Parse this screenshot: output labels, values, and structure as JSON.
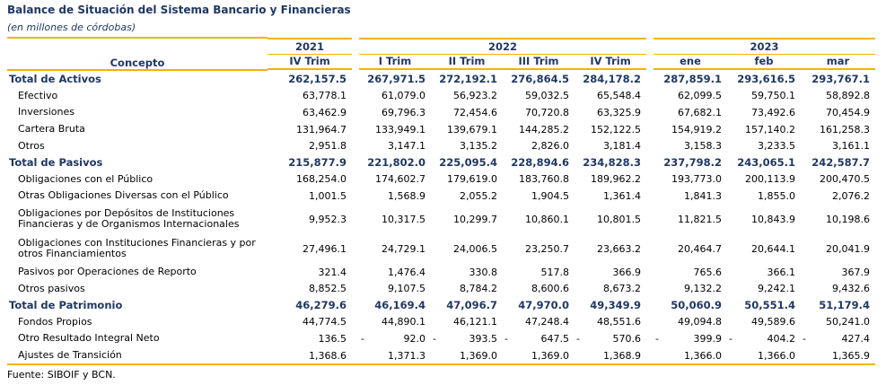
{
  "title": "Balance de Situación del Sistema Bancario y Financieras",
  "subtitle": "(en millones de córdobas)",
  "header": {
    "concept": "Concepto",
    "years": [
      "2021",
      "2022",
      "2023"
    ],
    "periods": [
      "IV Trim",
      "I Trim",
      "II Trim",
      "III Trim",
      "IV Trim",
      "ene",
      "feb",
      "mar"
    ]
  },
  "rows": [
    {
      "label": "Total de Activos",
      "total": true,
      "values": [
        "262,157.5",
        "267,971.5",
        "272,192.1",
        "276,864.5",
        "284,178.2",
        "287,859.1",
        "293,616.5",
        "293,767.1"
      ]
    },
    {
      "label": "Efectivo",
      "values": [
        "63,778.1",
        "61,079.0",
        "56,923.2",
        "59,032.5",
        "65,548.4",
        "62,099.5",
        "59,750.1",
        "58,892.8"
      ]
    },
    {
      "label": "Inversiones",
      "values": [
        "63,462.9",
        "69,796.3",
        "72,454.6",
        "70,720.8",
        "63,325.9",
        "67,682.1",
        "73,492.6",
        "70,454.9"
      ]
    },
    {
      "label": "Cartera Bruta",
      "values": [
        "131,964.7",
        "133,949.1",
        "139,679.1",
        "144,285.2",
        "152,122.5",
        "154,919.2",
        "157,140.2",
        "161,258.3"
      ]
    },
    {
      "label": "Otros",
      "values": [
        "2,951.8",
        "3,147.1",
        "3,135.2",
        "2,826.0",
        "3,181.4",
        "3,158.3",
        "3,233.5",
        "3,161.1"
      ]
    },
    {
      "label": "Total de Pasivos",
      "total": true,
      "values": [
        "215,877.9",
        "221,802.0",
        "225,095.4",
        "228,894.6",
        "234,828.3",
        "237,798.2",
        "243,065.1",
        "242,587.7"
      ]
    },
    {
      "label": "Obligaciones con el Público",
      "values": [
        "168,254.0",
        "174,602.7",
        "179,619.0",
        "183,760.8",
        "189,962.2",
        "193,773.0",
        "200,113.9",
        "200,470.5"
      ]
    },
    {
      "label": "Otras Obligaciones Diversas con el Público",
      "values": [
        "1,001.5",
        "1,568.9",
        "2,055.2",
        "1,904.5",
        "1,361.4",
        "1,841.3",
        "1,855.0",
        "2,076.2"
      ]
    },
    {
      "label": "Obligaciones por Depósitos de Instituciones Financieras y de Organismos Internacionales",
      "tall": true,
      "values": [
        "9,952.3",
        "10,317.5",
        "10,299.7",
        "10,860.1",
        "10,801.5",
        "11,821.5",
        "10,843.9",
        "10,198.6"
      ]
    },
    {
      "label": "Obligaciones con Instituciones Financieras y por otros Financiamientos",
      "tall": true,
      "values": [
        "27,496.1",
        "24,729.1",
        "24,006.5",
        "23,250.7",
        "23,663.2",
        "20,464.7",
        "20,644.1",
        "20,041.9"
      ]
    },
    {
      "label": "Pasivos por Operaciones de Reporto",
      "values": [
        "321.4",
        "1,476.4",
        "330.8",
        "517.8",
        "366.9",
        "765.6",
        "366.1",
        "367.9"
      ]
    },
    {
      "label": "Otros pasivos",
      "values": [
        "8,852.5",
        "9,107.5",
        "8,784.2",
        "8,600.6",
        "8,673.2",
        "9,132.2",
        "9,242.1",
        "9,432.6"
      ]
    },
    {
      "label": "Total de Patrimonio",
      "total": true,
      "values": [
        "46,279.6",
        "46,169.4",
        "47,096.7",
        "47,970.0",
        "49,349.9",
        "50,060.9",
        "50,551.4",
        "51,179.4"
      ]
    },
    {
      "label": "Fondos Propios",
      "values": [
        "44,774.5",
        "44,890.1",
        "46,121.1",
        "47,248.4",
        "48,551.6",
        "49,094.8",
        "49,589.6",
        "50,241.0"
      ]
    },
    {
      "label": "Otro Resultado Integral Neto",
      "values": [
        "136.5",
        "92.0",
        "393.5",
        "647.5",
        "570.6",
        "399.9",
        "404.2",
        "427.4"
      ],
      "signs": [
        "",
        "-",
        "-",
        "-",
        "-",
        "-",
        "-",
        "-"
      ]
    },
    {
      "label": "Ajustes de Transición",
      "values": [
        "1,368.6",
        "1,371.3",
        "1,369.0",
        "1,369.0",
        "1,368.9",
        "1,366.0",
        "1,366.0",
        "1,365.9"
      ]
    }
  ],
  "source": "Fuente: SIBOIF y BCN.",
  "colors": {
    "accent": "#f0b400",
    "heading": "#1f3864"
  }
}
